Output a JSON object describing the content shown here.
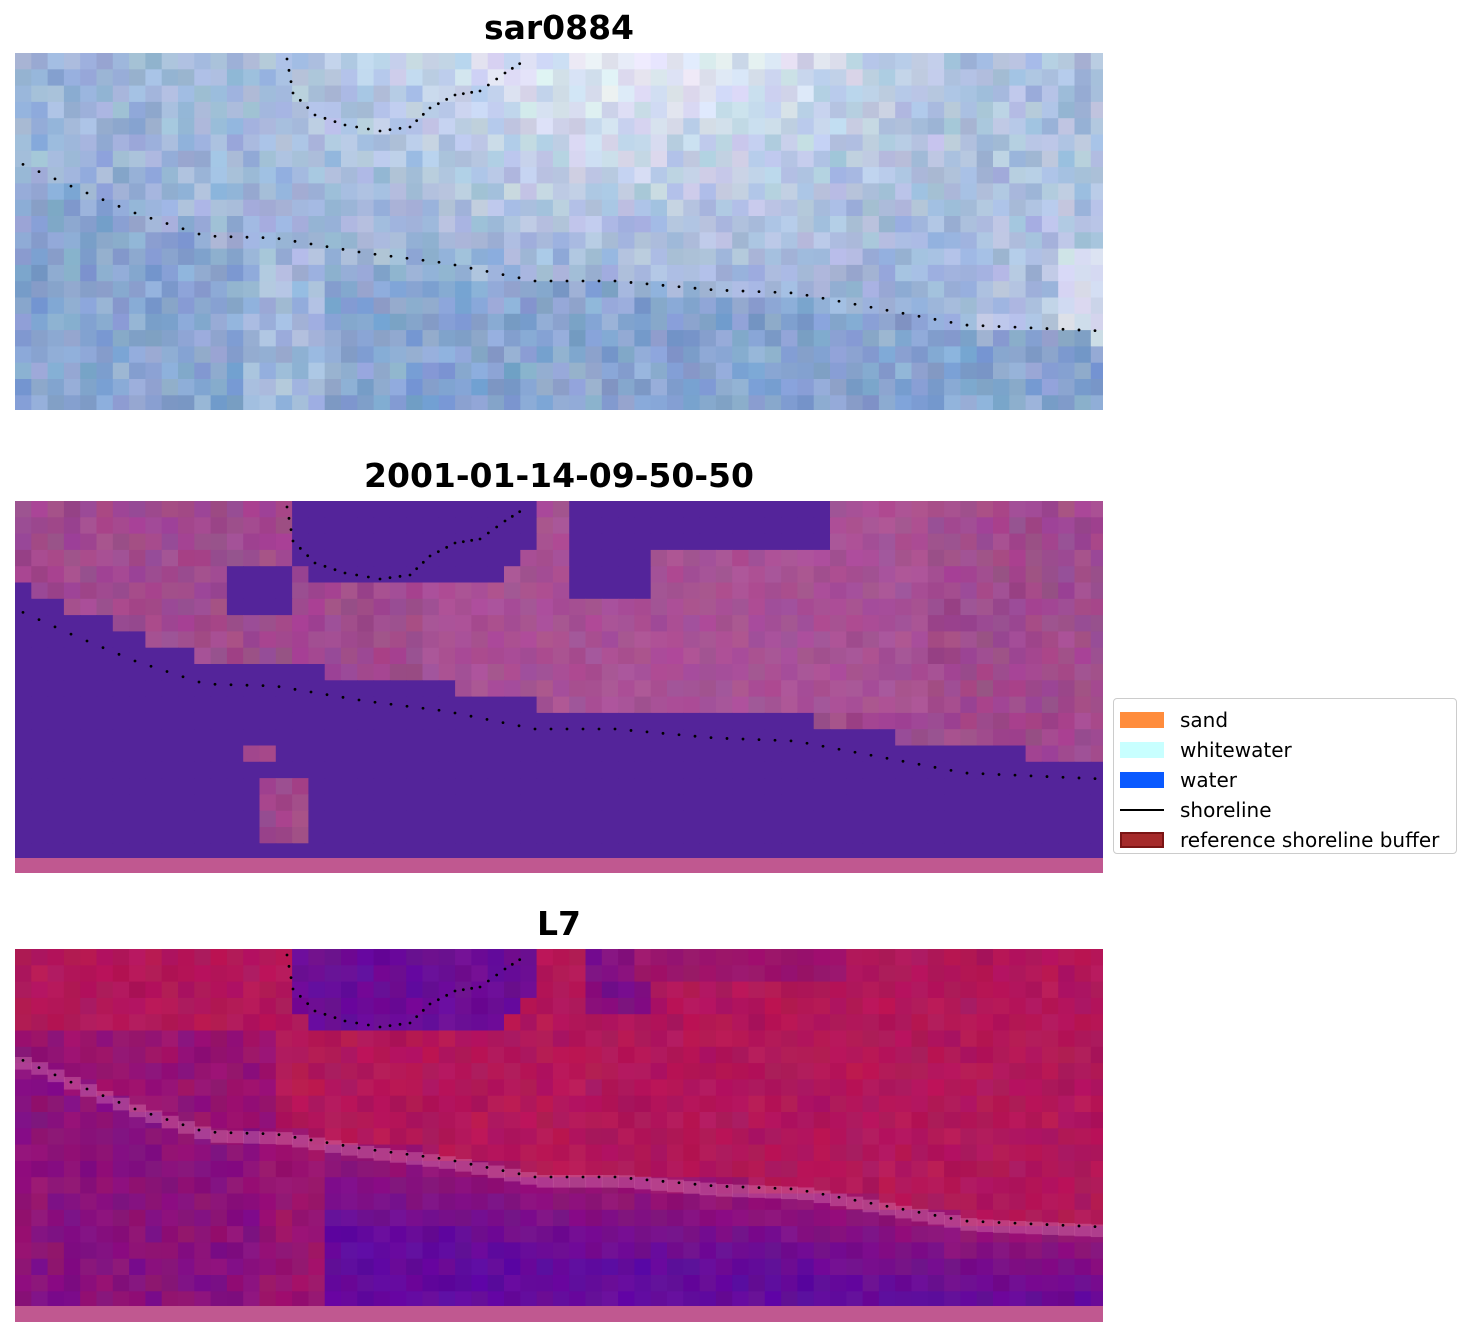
{
  "panels": [
    {
      "title": "sar0884",
      "style": "rgb"
    },
    {
      "title": "2001-01-14-09-50-50",
      "style": "class"
    },
    {
      "title": "L7",
      "style": "index"
    }
  ],
  "legend": {
    "items": [
      {
        "label": "sand",
        "type": "patch",
        "color": "#ff8c3c"
      },
      {
        "label": "whitewater",
        "type": "patch",
        "color": "#c8ffff"
      },
      {
        "label": "water",
        "type": "patch",
        "color": "#0a5aff"
      },
      {
        "label": "shoreline",
        "type": "line",
        "color": "#000000"
      },
      {
        "label": "reference shoreline buffer",
        "type": "patch",
        "color": "#a52a2a"
      }
    ]
  },
  "colors": {
    "water_class": "#54249a",
    "land_class": "#a04a8e",
    "buffer_strip": "#c05890",
    "index_red": "#c41a4a",
    "index_purple": "#5e0aa0",
    "rgb_water": "#6a8fc4",
    "rgb_white": "#eef0fa"
  }
}
